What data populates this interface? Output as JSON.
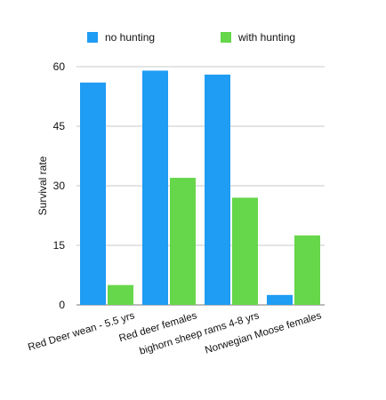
{
  "chart_data": {
    "type": "bar",
    "title": "",
    "xlabel": "",
    "ylabel": "Survival rate",
    "ylim": [
      0,
      60
    ],
    "yticks": [
      0,
      15,
      30,
      45,
      60
    ],
    "grid": true,
    "legend_position": "top",
    "categories": [
      "Red Deer wean - 5.5 yrs",
      "Red deer females",
      "bighorn sheep rams 4-8 yrs",
      "Norwegian Moose females"
    ],
    "series": [
      {
        "name": "no hunting",
        "color": "#1f9cf3",
        "values": [
          56,
          59,
          58,
          2.5
        ]
      },
      {
        "name": "with hunting",
        "color": "#66d64a",
        "values": [
          5,
          32,
          27,
          17.5
        ]
      }
    ]
  }
}
